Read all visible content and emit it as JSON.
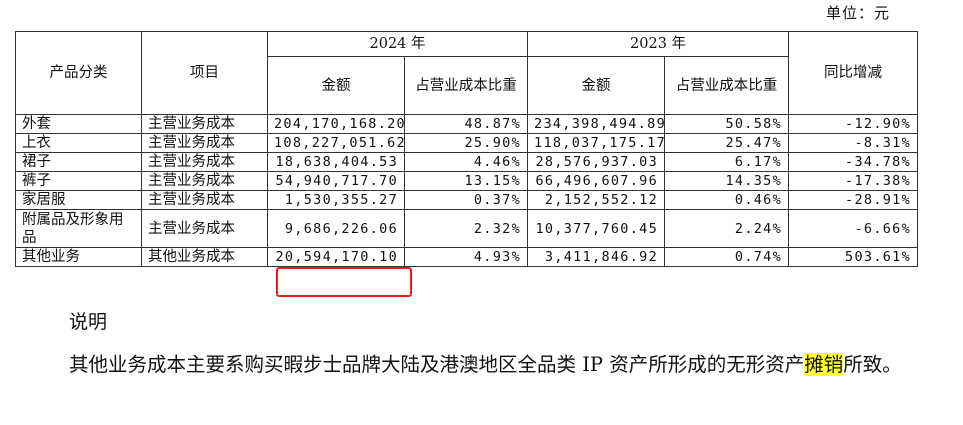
{
  "unit_label": "单位：元",
  "headers": {
    "category": "产品分类",
    "item": "项目",
    "year_2024": "2024 年",
    "year_2023": "2023 年",
    "amount": "金额",
    "ratio": "占营业成本比重",
    "yoy": "同比增减"
  },
  "rows": [
    {
      "category": "外套",
      "item": "主营业务成本",
      "amount_2024": "204,170,168.20",
      "ratio_2024": "48.87%",
      "amount_2023": "234,398,494.89",
      "ratio_2023": "50.58%",
      "yoy": "-12.90%"
    },
    {
      "category": "上衣",
      "item": "主营业务成本",
      "amount_2024": "108,227,051.62",
      "ratio_2024": "25.90%",
      "amount_2023": "118,037,175.17",
      "ratio_2023": "25.47%",
      "yoy": "-8.31%"
    },
    {
      "category": "裙子",
      "item": "主营业务成本",
      "amount_2024": "18,638,404.53",
      "ratio_2024": "4.46%",
      "amount_2023": "28,576,937.03",
      "ratio_2023": "6.17%",
      "yoy": "-34.78%"
    },
    {
      "category": "裤子",
      "item": "主营业务成本",
      "amount_2024": "54,940,717.70",
      "ratio_2024": "13.15%",
      "amount_2023": "66,496,607.96",
      "ratio_2023": "14.35%",
      "yoy": "-17.38%"
    },
    {
      "category": "家居服",
      "item": "主营业务成本",
      "amount_2024": "1,530,355.27",
      "ratio_2024": "0.37%",
      "amount_2023": "2,152,552.12",
      "ratio_2023": "0.46%",
      "yoy": "-28.91%"
    },
    {
      "category": "附属品及形象用品",
      "item": "主营业务成本",
      "amount_2024": "9,686,226.06",
      "ratio_2024": "2.32%",
      "amount_2023": "10,377,760.45",
      "ratio_2023": "2.24%",
      "yoy": "-6.66%"
    },
    {
      "category": "其他业务",
      "item": "其他业务成本",
      "amount_2024": "20,594,170.10",
      "ratio_2024": "4.93%",
      "amount_2023": "3,411,846.92",
      "ratio_2023": "0.74%",
      "yoy": "503.61%"
    }
  ],
  "note": {
    "title": "说明",
    "body_before": "其他业务成本主要系购买暇步士品牌大陆及港澳地区全品类 IP 资产所形成的无形资产",
    "highlight": "摊销",
    "body_after": "所致。"
  },
  "colors": {
    "highlight_box": "#e02020",
    "text_highlight": "#ffff33"
  }
}
